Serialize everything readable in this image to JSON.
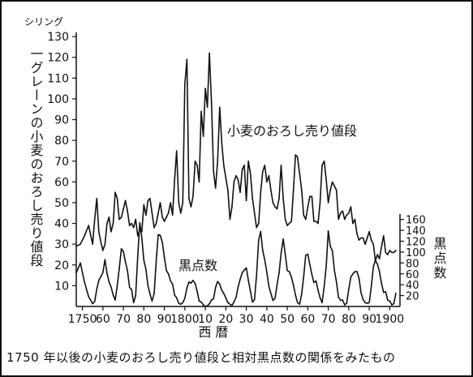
{
  "caption": "1750 年以後の小麦のおろし売り値段と相対黒点数の関係をみたもの",
  "chart_data": {
    "type": "line",
    "xlabel": "西 暦",
    "x_tick_labels": [
      "1750",
      "60",
      "70",
      "80",
      "90",
      "1800",
      "10",
      "20",
      "30",
      "40",
      "50",
      "60",
      "70",
      "80",
      "90",
      "1900"
    ],
    "x_ticks": [
      1750,
      1760,
      1770,
      1780,
      1790,
      1800,
      1810,
      1820,
      1830,
      1840,
      1850,
      1860,
      1870,
      1880,
      1890,
      1900
    ],
    "xlim": [
      1747,
      1905
    ],
    "left_axis": {
      "unit": "シリング",
      "label_vertical": "一グレーンの小麦のおろし売り値段",
      "ticks": [
        10,
        20,
        30,
        40,
        50,
        60,
        70,
        80,
        90,
        100,
        110,
        120,
        130
      ],
      "ylim": [
        0,
        132
      ]
    },
    "right_axis": {
      "label_vertical": "黒点数",
      "ticks": [
        20,
        40,
        60,
        80,
        100,
        120,
        140,
        160
      ],
      "ylim": [
        0,
        170
      ]
    },
    "series": [
      {
        "name": "小麦のおろし売り値段",
        "axis": "left",
        "x": [
          1747,
          1749,
          1751,
          1753,
          1755,
          1756,
          1757,
          1758,
          1759,
          1760,
          1761,
          1762,
          1763,
          1764,
          1765,
          1766,
          1767,
          1768,
          1769,
          1770,
          1771,
          1772,
          1773,
          1774,
          1775,
          1776,
          1777,
          1778,
          1779,
          1780,
          1781,
          1782,
          1783,
          1784,
          1785,
          1786,
          1787,
          1788,
          1789,
          1790,
          1791,
          1792,
          1793,
          1794,
          1795,
          1796,
          1797,
          1798,
          1799,
          1800,
          1801,
          1802,
          1803,
          1804,
          1805,
          1806,
          1807,
          1808,
          1809,
          1810,
          1811,
          1812,
          1813,
          1814,
          1815,
          1816,
          1817,
          1818,
          1819,
          1820,
          1821,
          1822,
          1823,
          1824,
          1825,
          1826,
          1827,
          1828,
          1829,
          1830,
          1831,
          1832,
          1833,
          1834,
          1835,
          1836,
          1837,
          1838,
          1839,
          1840,
          1841,
          1842,
          1843,
          1844,
          1845,
          1846,
          1847,
          1848,
          1849,
          1850,
          1851,
          1852,
          1853,
          1854,
          1855,
          1856,
          1857,
          1858,
          1859,
          1860,
          1861,
          1862,
          1863,
          1864,
          1865,
          1866,
          1867,
          1868,
          1869,
          1870,
          1871,
          1872,
          1873,
          1874,
          1875,
          1876,
          1877,
          1878,
          1879,
          1880,
          1881,
          1882,
          1883,
          1884,
          1885,
          1886,
          1887,
          1888,
          1889,
          1890,
          1891,
          1892,
          1893,
          1894,
          1895,
          1896,
          1897,
          1898,
          1899,
          1900,
          1901,
          1902,
          1903
        ],
        "values": [
          29,
          30,
          34,
          39,
          30,
          42,
          52,
          36,
          31,
          27,
          30,
          40,
          43,
          36,
          40,
          55,
          52,
          42,
          43,
          47,
          51,
          46,
          39,
          40,
          38,
          42,
          34,
          37,
          36,
          49,
          44,
          51,
          52,
          45,
          38,
          40,
          45,
          50,
          43,
          41,
          43,
          45,
          50,
          44,
          61,
          75,
          50,
          45,
          50,
          107,
          119,
          52,
          48,
          53,
          70,
          68,
          60,
          94,
          82,
          105,
          96,
          122,
          98,
          65,
          57,
          70,
          96,
          79,
          68,
          62,
          56,
          42,
          48,
          60,
          63,
          61,
          55,
          66,
          68,
          51,
          70,
          64,
          52,
          45,
          38,
          40,
          55,
          65,
          68,
          60,
          63,
          56,
          50,
          48,
          47,
          52,
          68,
          52,
          42,
          39,
          40,
          41,
          56,
          73,
          72,
          64,
          56,
          44,
          42,
          48,
          53,
          53,
          41,
          41,
          40,
          50,
          68,
          70,
          61,
          50,
          56,
          60,
          58,
          56,
          42,
          45,
          46,
          42,
          44,
          45,
          48,
          40,
          42,
          35,
          32,
          33,
          33,
          30,
          33,
          36,
          32,
          30,
          22,
          25,
          23,
          29,
          34,
          26,
          25,
          27,
          26,
          26,
          27
        ]
      },
      {
        "name": "黒点数",
        "axis": "right",
        "x": [
          1747,
          1749,
          1751,
          1753,
          1755,
          1756,
          1757,
          1758,
          1759,
          1760,
          1761,
          1762,
          1763,
          1764,
          1765,
          1766,
          1767,
          1768,
          1769,
          1770,
          1771,
          1772,
          1773,
          1774,
          1775,
          1776,
          1777,
          1778,
          1779,
          1780,
          1781,
          1782,
          1783,
          1784,
          1785,
          1786,
          1787,
          1788,
          1789,
          1790,
          1791,
          1792,
          1793,
          1794,
          1795,
          1796,
          1797,
          1798,
          1799,
          1800,
          1801,
          1802,
          1803,
          1804,
          1805,
          1806,
          1807,
          1808,
          1809,
          1810,
          1811,
          1812,
          1813,
          1814,
          1815,
          1816,
          1817,
          1818,
          1819,
          1820,
          1821,
          1822,
          1823,
          1824,
          1825,
          1826,
          1827,
          1828,
          1829,
          1830,
          1831,
          1832,
          1833,
          1834,
          1835,
          1836,
          1837,
          1838,
          1839,
          1840,
          1841,
          1842,
          1843,
          1844,
          1845,
          1846,
          1847,
          1848,
          1849,
          1850,
          1851,
          1852,
          1853,
          1854,
          1855,
          1856,
          1857,
          1858,
          1859,
          1860,
          1861,
          1862,
          1863,
          1864,
          1865,
          1866,
          1867,
          1868,
          1869,
          1870,
          1871,
          1872,
          1873,
          1874,
          1875,
          1876,
          1877,
          1878,
          1879,
          1880,
          1881,
          1882,
          1883,
          1884,
          1885,
          1886,
          1887,
          1888,
          1889,
          1890,
          1891,
          1892,
          1893,
          1894,
          1895,
          1896,
          1897,
          1898,
          1899,
          1900,
          1901,
          1902,
          1903
        ],
        "values": [
          62,
          80,
          45,
          18,
          5,
          9,
          32,
          48,
          55,
          62,
          86,
          61,
          45,
          36,
          21,
          12,
          38,
          70,
          106,
          101,
          82,
          66,
          35,
          31,
          7,
          20,
          93,
          154,
          126,
          85,
          68,
          38,
          23,
          10,
          24,
          83,
          132,
          131,
          118,
          90,
          66,
          60,
          47,
          41,
          21,
          16,
          6,
          4,
          7,
          15,
          34,
          45,
          43,
          48,
          42,
          28,
          10,
          8,
          3,
          0,
          1,
          5,
          12,
          14,
          35,
          46,
          41,
          30,
          24,
          16,
          7,
          4,
          2,
          8,
          17,
          36,
          50,
          62,
          67,
          71,
          48,
          28,
          8,
          13,
          57,
          122,
          138,
          103,
          86,
          63,
          37,
          24,
          11,
          15,
          40,
          62,
          98,
          124,
          96,
          66,
          64,
          54,
          39,
          21,
          7,
          4,
          23,
          55,
          94,
          96,
          77,
          59,
          44,
          47,
          30,
          16,
          7,
          37,
          74,
          139,
          111,
          102,
          66,
          45,
          17,
          11,
          12,
          3,
          6,
          32,
          54,
          60,
          64,
          64,
          52,
          25,
          13,
          7,
          6,
          7,
          36,
          73,
          85,
          78,
          64,
          42,
          26,
          27,
          12,
          10,
          3,
          5,
          24
        ]
      }
    ],
    "annotations": [
      {
        "text": "小麦のおろし売り値段",
        "series": "小麦のおろし売り値段"
      },
      {
        "text": "黒点数",
        "series": "黒点数"
      }
    ],
    "grid": false,
    "legend": "none"
  }
}
